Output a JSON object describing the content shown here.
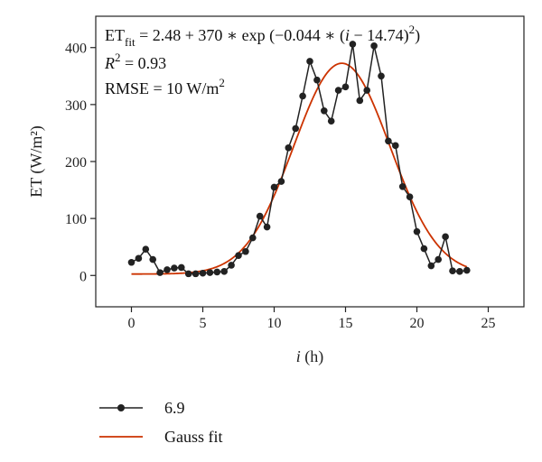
{
  "chart_data": {
    "type": "line",
    "xlabel_var": "i",
    "xlabel_unit": "(h)",
    "ylabel": "ET (W/m²)",
    "xlim": [
      -2.5,
      27.5
    ],
    "ylim": [
      -55,
      455
    ],
    "xticks": [
      0,
      5,
      10,
      15,
      20,
      25
    ],
    "yticks": [
      0,
      100,
      200,
      300,
      400
    ],
    "grid": false,
    "legend_position": "bottom-left",
    "annotations": {
      "equation": {
        "lhs": "ET",
        "lhs_sub": "fit",
        "body": " = 2.48 + 370 ∗ exp (−0.044 ∗ (",
        "var": "i",
        "tail": " − 14.74)",
        "sup": "2",
        "close": ")"
      },
      "r2": {
        "var": "R",
        "sup": "2",
        "rest": " = 0.93"
      },
      "rmse": {
        "text": "RMSE = 10 W/m",
        "sup": "2"
      }
    },
    "series": [
      {
        "name": "6.9",
        "color": "#222222",
        "marker": "circle",
        "x": [
          0,
          0.5,
          1,
          1.5,
          2,
          2.5,
          3,
          3.5,
          4,
          4.5,
          5,
          5.5,
          6,
          6.5,
          7,
          7.5,
          8,
          8.5,
          9,
          9.5,
          10,
          10.5,
          11,
          11.5,
          12,
          12.5,
          13,
          13.5,
          14,
          14.5,
          15,
          15.5,
          16,
          16.5,
          17,
          17.5,
          18,
          18.5,
          19,
          19.5,
          20,
          20.5,
          21,
          21.5,
          22,
          22.5,
          23,
          23.5
        ],
        "y": [
          23,
          30,
          46,
          28,
          5,
          10,
          13,
          14,
          3,
          3,
          4,
          5,
          6,
          7,
          18,
          35,
          42,
          66,
          104,
          85,
          155,
          165,
          224,
          258,
          315,
          376,
          343,
          289,
          271,
          325,
          331,
          406,
          307,
          325,
          403,
          350,
          236,
          228,
          156,
          138,
          77,
          47,
          17,
          28,
          68,
          8,
          7,
          9
        ]
      },
      {
        "name": "Gauss fit",
        "color": "#cc3300",
        "marker": "none",
        "model": {
          "a": 2.48,
          "b": 370,
          "c": 0.044,
          "mu": 14.74,
          "x_start": 0,
          "x_end": 23.5
        }
      }
    ]
  }
}
